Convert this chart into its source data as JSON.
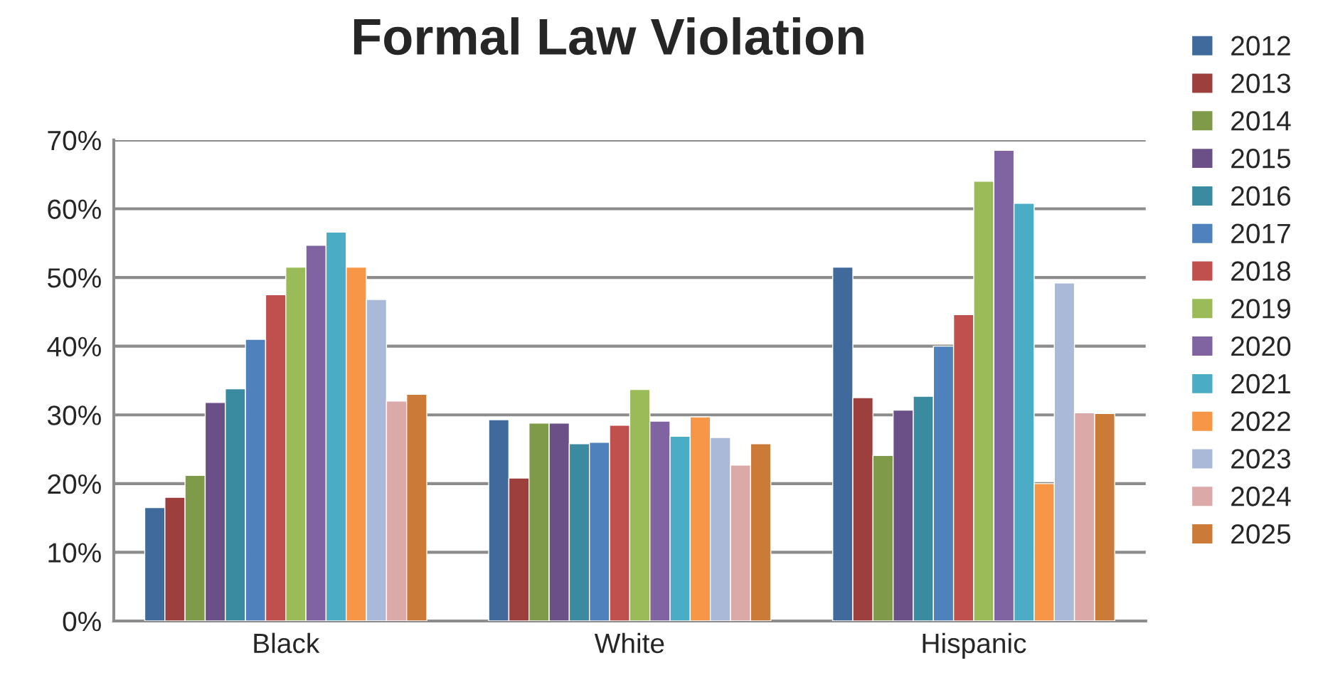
{
  "chart_data": {
    "type": "bar",
    "title": "Formal Law Violation",
    "categories": [
      "Black",
      "White",
      "Hispanic"
    ],
    "series": [
      {
        "name": "2012",
        "color": "#406a9c",
        "values": [
          16.5,
          29.3,
          51.5
        ]
      },
      {
        "name": "2013",
        "color": "#9c3f3d",
        "values": [
          18,
          20.8,
          32.5
        ]
      },
      {
        "name": "2014",
        "color": "#7f9a49",
        "values": [
          21.2,
          28.8,
          24.1
        ]
      },
      {
        "name": "2015",
        "color": "#6a5086",
        "values": [
          31.8,
          28.8,
          30.7
        ]
      },
      {
        "name": "2016",
        "color": "#3a8aa0",
        "values": [
          33.8,
          25.8,
          32.7
        ]
      },
      {
        "name": "2017",
        "color": "#4f81bd",
        "values": [
          41,
          26,
          40
        ]
      },
      {
        "name": "2018",
        "color": "#c0504d",
        "values": [
          47.5,
          28.5,
          44.6
        ]
      },
      {
        "name": "2019",
        "color": "#9bbb59",
        "values": [
          51.5,
          33.7,
          64
        ]
      },
      {
        "name": "2020",
        "color": "#8064a2",
        "values": [
          54.7,
          29.1,
          68.5
        ]
      },
      {
        "name": "2021",
        "color": "#4bacc6",
        "values": [
          56.6,
          26.9,
          60.8
        ]
      },
      {
        "name": "2022",
        "color": "#f79646",
        "values": [
          51.5,
          29.7,
          20
        ]
      },
      {
        "name": "2023",
        "color": "#aab9d7",
        "values": [
          46.8,
          26.7,
          49.2
        ]
      },
      {
        "name": "2024",
        "color": "#dba9a8",
        "values": [
          32,
          22.7,
          30.3
        ]
      },
      {
        "name": "2025",
        "color": "#cb7a38",
        "values": [
          33,
          25.8,
          30.2
        ]
      }
    ],
    "ylim": [
      0,
      70
    ],
    "yticks": [
      {
        "value": 0,
        "label": "0%"
      },
      {
        "value": 10,
        "label": "10%"
      },
      {
        "value": 20,
        "label": "20%"
      },
      {
        "value": 30,
        "label": "30%"
      },
      {
        "value": 40,
        "label": "40%"
      },
      {
        "value": 50,
        "label": "50%"
      },
      {
        "value": 60,
        "label": "60%"
      },
      {
        "value": 70,
        "label": "70%"
      }
    ],
    "grid": "y",
    "legend": "right"
  }
}
